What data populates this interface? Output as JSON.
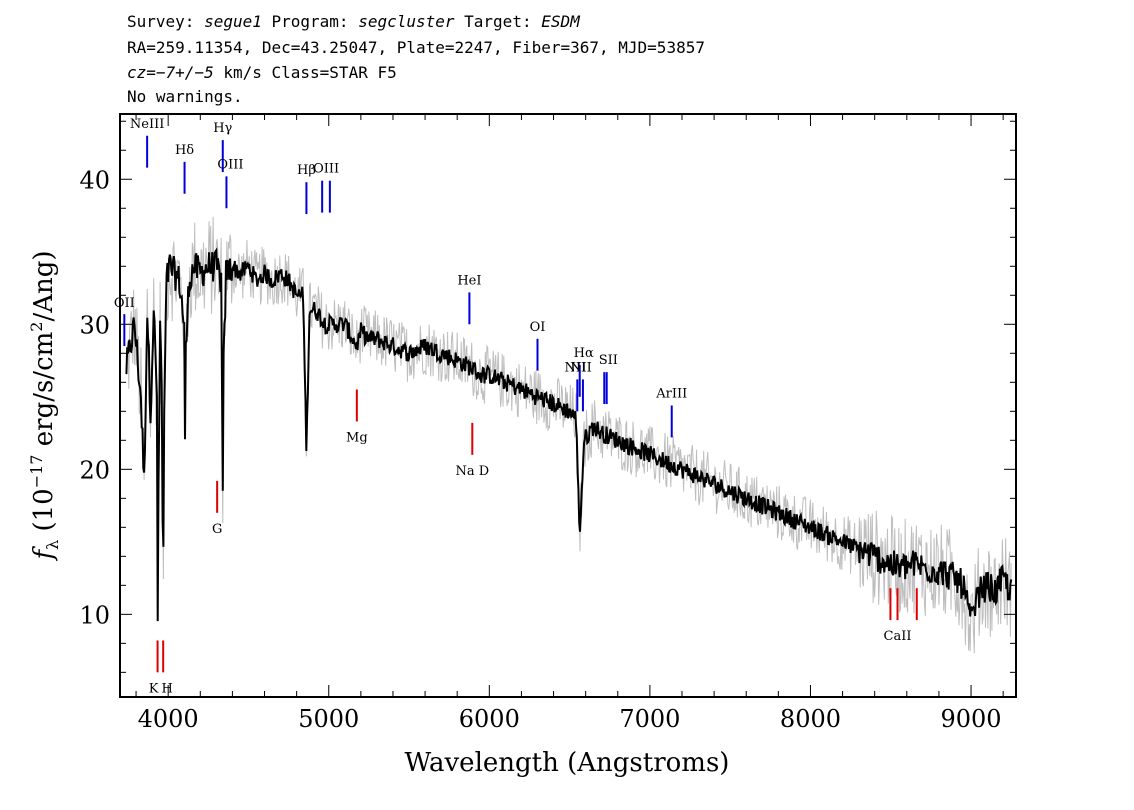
{
  "header": {
    "line1": {
      "p1": "Survey: ",
      "survey": "segue1",
      "p2": " Program: ",
      "program": "segcluster",
      "p3": " Target: ",
      "target": "ESDM"
    },
    "line2": "RA=259.11354, Dec=43.25047, Plate=2247, Fiber=367, MJD=53857",
    "line3": {
      "cz": "cz=−7+/−5",
      "rest": " km/s Class=STAR F5"
    },
    "line4": "No warnings."
  },
  "colors": {
    "flux": "#000000",
    "error": "#bebebe",
    "emission": "#0000dd",
    "absorption": "#dd0000"
  },
  "chart_data": {
    "type": "line",
    "xlabel": "Wavelength (Angstroms)",
    "ylabel": "f_λ (10^-17 erg/s/cm^2/Ang)",
    "ylabel_parts": {
      "f": "f",
      "sub": "λ",
      "a": " (10",
      "exp": "−17",
      "b": " erg/s/cm",
      "exp2": "2",
      "c": "/Ang)"
    },
    "xlim": [
      3700,
      9280
    ],
    "ylim": [
      4.3,
      44.5
    ],
    "xticks": [
      4000,
      5000,
      6000,
      7000,
      8000,
      9000
    ],
    "yticks": [
      10,
      20,
      30,
      40
    ],
    "series": [
      {
        "role": "flux",
        "x": [
          3740,
          3790,
          3830,
          3850,
          3870,
          3890,
          3910,
          3930,
          3934,
          3940,
          3950,
          3960,
          3968,
          3975,
          3990,
          4010,
          4040,
          4070,
          4100,
          4102,
          4110,
          4130,
          4160,
          4200,
          4250,
          4300,
          4330,
          4340,
          4345,
          4360,
          4400,
          4450,
          4500,
          4550,
          4600,
          4650,
          4700,
          4750,
          4800,
          4840,
          4861,
          4880,
          4920,
          4980,
          5050,
          5100,
          5150,
          5175,
          5200,
          5250,
          5300,
          5400,
          5500,
          5600,
          5700,
          5800,
          5890,
          5950,
          6000,
          6100,
          6200,
          6300,
          6400,
          6500,
          6540,
          6563,
          6590,
          6650,
          6700,
          6800,
          6900,
          7000,
          7100,
          7200,
          7300,
          7400,
          7500,
          7600,
          7700,
          7800,
          7900,
          8000,
          8100,
          8200,
          8300,
          8400,
          8498,
          8542,
          8600,
          8662,
          8700,
          8800,
          8900,
          8950,
          9000,
          9050,
          9100,
          9150,
          9200,
          9250
        ],
        "y": [
          27.0,
          30.0,
          25.0,
          19.0,
          31.0,
          24.0,
          31.0,
          25.0,
          8.4,
          18.0,
          30.0,
          26.0,
          10.0,
          24.0,
          33.0,
          34.0,
          33.5,
          33.0,
          30.0,
          17.8,
          28.0,
          33.0,
          34.0,
          33.5,
          34.0,
          34.0,
          33.0,
          17.8,
          27.0,
          33.5,
          34.0,
          33.5,
          34.0,
          33.0,
          33.5,
          33.0,
          33.5,
          33.0,
          32.0,
          32.0,
          21.3,
          31.0,
          31.0,
          30.0,
          30.0,
          30.0,
          29.0,
          28.5,
          29.5,
          29.0,
          29.0,
          28.5,
          28.0,
          28.5,
          28.0,
          27.5,
          27.0,
          26.5,
          26.5,
          26.0,
          25.5,
          25.0,
          24.5,
          24.0,
          23.5,
          15.5,
          22.0,
          23.0,
          22.5,
          22.0,
          21.5,
          21.0,
          20.5,
          20.0,
          19.5,
          19.0,
          18.5,
          18.0,
          17.5,
          17.0,
          16.5,
          16.0,
          15.5,
          15.0,
          14.5,
          14.0,
          13.5,
          13.2,
          13.3,
          13.5,
          13.2,
          13.0,
          12.5,
          12.0,
          9.5,
          11.5,
          12.0,
          11.5,
          12.5,
          11.5
        ]
      }
    ],
    "lines": [
      {
        "label": "OII",
        "wave": 3727,
        "type": "emission"
      },
      {
        "label": "NeIII",
        "wave": 3869,
        "type": "emission"
      },
      {
        "label": "Hδ",
        "wave": 4102,
        "type": "emission"
      },
      {
        "label": "Hγ",
        "wave": 4340,
        "type": "emission"
      },
      {
        "label": "OIII",
        "wave": 4363,
        "type": "emission"
      },
      {
        "label": "Hβ",
        "wave": 4861,
        "type": "emission"
      },
      {
        "label": "OIII",
        "wave": 4959,
        "type": "emission"
      },
      {
        "label": "",
        "wave": 5007,
        "type": "emission"
      },
      {
        "label": "HeI",
        "wave": 5876,
        "type": "emission"
      },
      {
        "label": "OI",
        "wave": 6300,
        "type": "emission"
      },
      {
        "label": "NII",
        "wave": 6548,
        "type": "emission"
      },
      {
        "label": "Hα",
        "wave": 6563,
        "type": "emission"
      },
      {
        "label": "NII",
        "wave": 6583,
        "type": "emission"
      },
      {
        "label": "SII",
        "wave": 6716,
        "type": "emission"
      },
      {
        "label": "",
        "wave": 6731,
        "type": "emission"
      },
      {
        "label": "ArIII",
        "wave": 7136,
        "type": "emission"
      },
      {
        "label": "K",
        "wave": 3934,
        "type": "absorption"
      },
      {
        "label": "H",
        "wave": 3969,
        "type": "absorption"
      },
      {
        "label": "G",
        "wave": 4305,
        "type": "absorption"
      },
      {
        "label": "Mg",
        "wave": 5175,
        "type": "absorption"
      },
      {
        "label": "Na D",
        "wave": 5894,
        "type": "absorption"
      },
      {
        "label": "",
        "wave": 8498,
        "type": "absorption"
      },
      {
        "label": "CaII",
        "wave": 8542,
        "type": "absorption"
      },
      {
        "label": "",
        "wave": 8662,
        "type": "absorption"
      }
    ]
  }
}
